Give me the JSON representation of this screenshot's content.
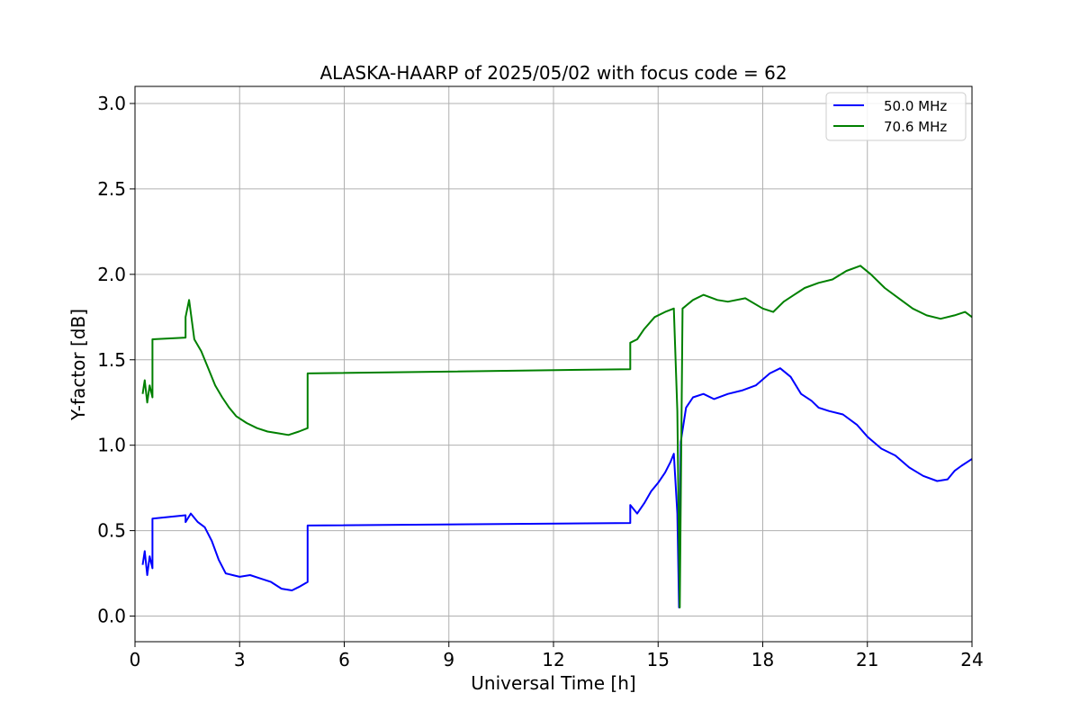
{
  "chart_data": {
    "type": "line",
    "title": "ALASKA-HAARP of 2025/05/02 with focus code = 62",
    "xlabel": "Universal Time [h]",
    "ylabel": "Y-factor [dB]",
    "xlim": [
      0,
      24
    ],
    "ylim": [
      -0.15,
      3.1
    ],
    "x_ticks": [
      0,
      3,
      6,
      9,
      12,
      15,
      18,
      21,
      24
    ],
    "y_ticks": [
      0.0,
      0.5,
      1.0,
      1.5,
      2.0,
      2.5,
      3.0
    ],
    "y_tick_labels": [
      "0.0",
      "0.5",
      "1.0",
      "1.5",
      "2.0",
      "2.5",
      "3.0"
    ],
    "grid": true,
    "legend_position": "top-right",
    "series": [
      {
        "name": "50.0 MHz",
        "color": "#0000ff",
        "points": [
          [
            0.22,
            0.3
          ],
          [
            0.28,
            0.38
          ],
          [
            0.35,
            0.24
          ],
          [
            0.42,
            0.35
          ],
          [
            0.5,
            0.28
          ],
          [
            0.5,
            0.57
          ],
          [
            1.45,
            0.59
          ],
          [
            1.45,
            0.55
          ],
          [
            1.6,
            0.6
          ],
          [
            1.8,
            0.55
          ],
          [
            2.0,
            0.52
          ],
          [
            2.2,
            0.44
          ],
          [
            2.4,
            0.33
          ],
          [
            2.6,
            0.25
          ],
          [
            2.8,
            0.24
          ],
          [
            3.0,
            0.23
          ],
          [
            3.3,
            0.24
          ],
          [
            3.6,
            0.22
          ],
          [
            3.9,
            0.2
          ],
          [
            4.2,
            0.16
          ],
          [
            4.5,
            0.15
          ],
          [
            4.7,
            0.17
          ],
          [
            4.95,
            0.2
          ],
          [
            4.95,
            0.53
          ],
          [
            14.2,
            0.545
          ],
          [
            14.2,
            0.65
          ],
          [
            14.4,
            0.6
          ],
          [
            14.6,
            0.66
          ],
          [
            14.8,
            0.73
          ],
          [
            15.0,
            0.78
          ],
          [
            15.2,
            0.84
          ],
          [
            15.35,
            0.9
          ],
          [
            15.45,
            0.95
          ],
          [
            15.55,
            0.6
          ],
          [
            15.6,
            0.05
          ],
          [
            15.65,
            1.02
          ],
          [
            15.8,
            1.22
          ],
          [
            16.0,
            1.28
          ],
          [
            16.3,
            1.3
          ],
          [
            16.6,
            1.27
          ],
          [
            17.0,
            1.3
          ],
          [
            17.4,
            1.32
          ],
          [
            17.8,
            1.35
          ],
          [
            18.2,
            1.42
          ],
          [
            18.5,
            1.45
          ],
          [
            18.8,
            1.4
          ],
          [
            19.1,
            1.3
          ],
          [
            19.4,
            1.26
          ],
          [
            19.6,
            1.22
          ],
          [
            19.9,
            1.2
          ],
          [
            20.3,
            1.18
          ],
          [
            20.7,
            1.12
          ],
          [
            21.0,
            1.05
          ],
          [
            21.4,
            0.98
          ],
          [
            21.8,
            0.94
          ],
          [
            22.2,
            0.87
          ],
          [
            22.6,
            0.82
          ],
          [
            23.0,
            0.79
          ],
          [
            23.3,
            0.8
          ],
          [
            23.5,
            0.85
          ],
          [
            23.7,
            0.88
          ],
          [
            24.0,
            0.92
          ]
        ]
      },
      {
        "name": "70.6 MHz",
        "color": "#008000",
        "points": [
          [
            0.22,
            1.3
          ],
          [
            0.28,
            1.38
          ],
          [
            0.35,
            1.25
          ],
          [
            0.42,
            1.35
          ],
          [
            0.5,
            1.28
          ],
          [
            0.5,
            1.62
          ],
          [
            1.45,
            1.63
          ],
          [
            1.45,
            1.75
          ],
          [
            1.55,
            1.85
          ],
          [
            1.7,
            1.62
          ],
          [
            1.9,
            1.55
          ],
          [
            2.1,
            1.45
          ],
          [
            2.3,
            1.35
          ],
          [
            2.5,
            1.28
          ],
          [
            2.7,
            1.22
          ],
          [
            2.9,
            1.17
          ],
          [
            3.2,
            1.13
          ],
          [
            3.5,
            1.1
          ],
          [
            3.8,
            1.08
          ],
          [
            4.1,
            1.07
          ],
          [
            4.4,
            1.06
          ],
          [
            4.7,
            1.08
          ],
          [
            4.95,
            1.1
          ],
          [
            4.95,
            1.42
          ],
          [
            14.2,
            1.445
          ],
          [
            14.2,
            1.6
          ],
          [
            14.4,
            1.62
          ],
          [
            14.6,
            1.68
          ],
          [
            14.9,
            1.75
          ],
          [
            15.2,
            1.78
          ],
          [
            15.45,
            1.8
          ],
          [
            15.55,
            1.2
          ],
          [
            15.62,
            0.05
          ],
          [
            15.7,
            1.8
          ],
          [
            16.0,
            1.85
          ],
          [
            16.3,
            1.88
          ],
          [
            16.7,
            1.85
          ],
          [
            17.0,
            1.84
          ],
          [
            17.5,
            1.86
          ],
          [
            18.0,
            1.8
          ],
          [
            18.3,
            1.78
          ],
          [
            18.6,
            1.84
          ],
          [
            18.9,
            1.88
          ],
          [
            19.2,
            1.92
          ],
          [
            19.6,
            1.95
          ],
          [
            20.0,
            1.97
          ],
          [
            20.4,
            2.02
          ],
          [
            20.8,
            2.05
          ],
          [
            21.1,
            2.0
          ],
          [
            21.5,
            1.92
          ],
          [
            21.9,
            1.86
          ],
          [
            22.3,
            1.8
          ],
          [
            22.7,
            1.76
          ],
          [
            23.1,
            1.74
          ],
          [
            23.5,
            1.76
          ],
          [
            23.8,
            1.78
          ],
          [
            24.0,
            1.75
          ]
        ]
      }
    ]
  }
}
